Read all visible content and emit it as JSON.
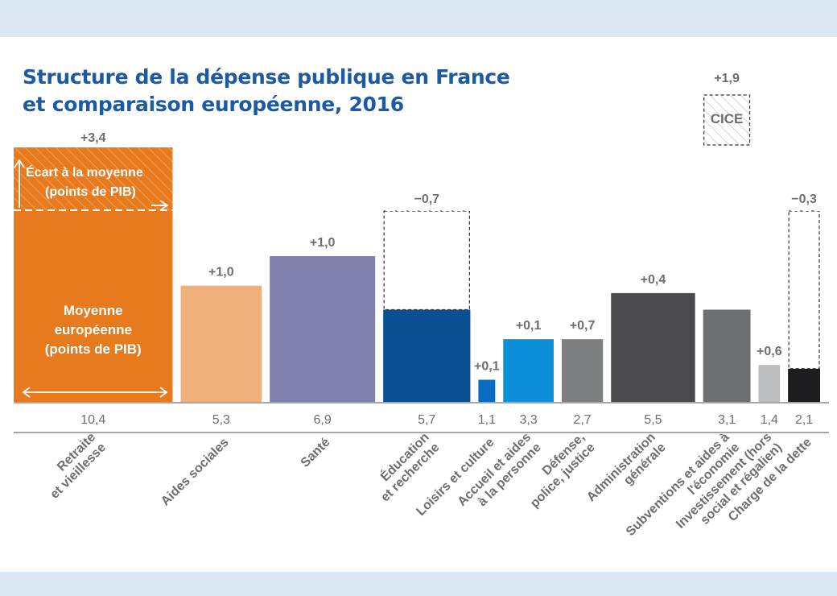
{
  "title_line1": "Structure de la dépense publique en France",
  "title_line2": "et comparaison européenne, 2016",
  "chart_data": {
    "type": "bar",
    "title": "Structure de la dépense publique en France et comparaison européenne, 2016",
    "unit": "points de PIB",
    "categories": [
      {
        "label": [
          "Retraite",
          "et vieillesse"
        ],
        "eu_average": 10.4,
        "gap": 3.4,
        "avg_text": "10,4",
        "gap_text": "+3,4",
        "color": "#e87a1e"
      },
      {
        "label": [
          "Aides sociales"
        ],
        "eu_average": 5.3,
        "gap": 1.0,
        "avg_text": "5,3",
        "gap_text": "+1,0",
        "color": "#f0b07b"
      },
      {
        "label": [
          "Santé"
        ],
        "eu_average": 6.9,
        "gap": 1.0,
        "avg_text": "6,9",
        "gap_text": "+1,0",
        "color": "#7f7fb0"
      },
      {
        "label": [
          "Éducation",
          "et recherche"
        ],
        "eu_average": 5.7,
        "gap": -0.7,
        "avg_text": "5,7",
        "gap_text": "−0,7",
        "color": "#0b4f95"
      },
      {
        "label": [
          "Loisirs et culture"
        ],
        "eu_average": 1.1,
        "gap": 0.1,
        "avg_text": "1,1",
        "gap_text": "+0,1",
        "color": "#0a6cc0"
      },
      {
        "label": [
          "Accueil et aides",
          "à la personne"
        ],
        "eu_average": 3.3,
        "gap": 0.1,
        "avg_text": "3,3",
        "gap_text": "+0,1",
        "color": "#0a8fd8"
      },
      {
        "label": [
          "Défense,",
          "police, justice"
        ],
        "eu_average": 2.7,
        "gap": 0.7,
        "avg_text": "2,7",
        "gap_text": "+0,7",
        "color": "#7d7f81"
      },
      {
        "label": [
          "Administration",
          "générale"
        ],
        "eu_average": 5.5,
        "gap": 0.4,
        "avg_text": "5,5",
        "gap_text": "+0,4",
        "color": "#4b4b4d"
      },
      {
        "label": [
          "Subventions et aides à",
          "l'économie"
        ],
        "eu_average": 3.1,
        "gap": 1.9,
        "avg_text": "3,1",
        "gap_text": "+1,9",
        "color": "#6d6f71",
        "note": "CICE"
      },
      {
        "label": [
          "Investissement (hors",
          "social et régalien)"
        ],
        "eu_average": 1.4,
        "gap": 0.6,
        "avg_text": "1,4",
        "gap_text": "+0,6",
        "color": "#bcbdbf"
      },
      {
        "label": [
          "Charge de la dette"
        ],
        "eu_average": 2.1,
        "gap": -0.3,
        "avg_text": "2,1",
        "gap_text": "−0,3",
        "color": "#1d1d1f"
      }
    ],
    "legend": {
      "gap_label": [
        "Écart à la moyenne",
        "(points de PIB)"
      ],
      "average_label": [
        "Moyenne",
        "européenne",
        "(points de PIB)"
      ]
    },
    "colors": {
      "text_gray": "#6d6e71",
      "title_blue": "#1c5aa3",
      "line": "#9a9a9a"
    }
  }
}
